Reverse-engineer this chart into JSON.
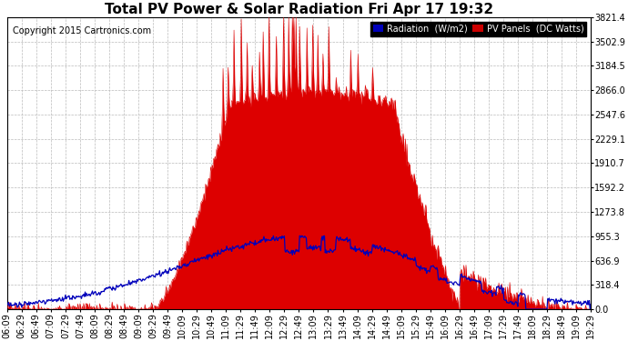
{
  "title": "Total PV Power & Solar Radiation Fri Apr 17 19:32",
  "copyright": "Copyright 2015 Cartronics.com",
  "yticks": [
    0.0,
    318.4,
    636.9,
    955.3,
    1273.8,
    1592.2,
    1910.7,
    2229.1,
    2547.6,
    2866.0,
    3184.5,
    3502.9,
    3821.4
  ],
  "ymax": 3821.4,
  "ymin": 0.0,
  "legend_radiation_label": "Radiation  (W/m2)",
  "legend_pv_label": "PV Panels  (DC Watts)",
  "legend_radiation_color": "#0000bb",
  "legend_pv_color": "#cc0000",
  "background_color": "#ffffff",
  "plot_bg_color": "#ffffff",
  "grid_color": "#bbbbbb",
  "fill_color": "#dd0000",
  "line_color_pv": "#dd0000",
  "line_color_radiation": "#0000bb",
  "title_fontsize": 11,
  "tick_fontsize": 7,
  "copyright_fontsize": 7,
  "x_start_min": 369,
  "x_end_min": 1169,
  "x_tick_interval_min": 20
}
